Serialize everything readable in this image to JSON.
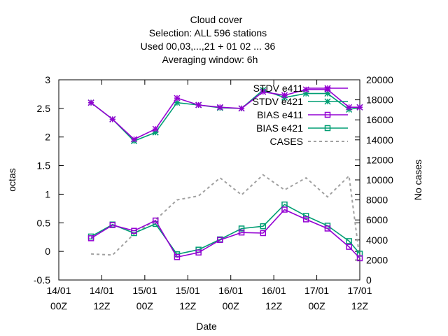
{
  "chart_data": {
    "type": "line",
    "title_lines": [
      "Cloud cover",
      "Selection: ALL    596 stations",
      "Used  00,03,...,21  + 01 02 ... 36",
      "Averaging window:  6h"
    ],
    "xlabel": "Date",
    "ylabel": "octas",
    "y2label": "No cases",
    "ylim": [
      -0.5,
      3
    ],
    "y2lim": [
      0,
      20000
    ],
    "xlim_hours": [
      0,
      84
    ],
    "y_ticks": [
      "-0.5",
      "0",
      "0.5",
      "1",
      "1.5",
      "2",
      "2.5",
      "3"
    ],
    "y2_ticks": [
      "0",
      "2000",
      "4000",
      "6000",
      "8000",
      "10000",
      "12000",
      "14000",
      "16000",
      "18000",
      "20000"
    ],
    "x_ticks": [
      {
        "line1": "14/01",
        "line2": "00Z"
      },
      {
        "line1": "14/01",
        "line2": "12Z"
      },
      {
        "line1": "15/01",
        "line2": "00Z"
      },
      {
        "line1": "15/01",
        "line2": "12Z"
      },
      {
        "line1": "16/01",
        "line2": "00Z"
      },
      {
        "line1": "16/01",
        "line2": "12Z"
      },
      {
        "line1": "17/01",
        "line2": "00Z"
      },
      {
        "line1": "17/01",
        "line2": "12Z"
      }
    ],
    "x_hours": [
      9,
      15,
      21,
      27,
      33,
      39,
      45,
      51,
      57,
      63,
      69,
      75,
      81,
      84
    ],
    "legend_position": "top-right",
    "series": [
      {
        "name": "STDV e411",
        "marker": "star",
        "color": "#9400d3",
        "axis": "y1",
        "values": [
          2.6,
          2.31,
          1.96,
          2.14,
          2.68,
          2.56,
          2.52,
          2.5,
          2.79,
          2.73,
          2.83,
          2.83,
          2.52,
          2.52
        ]
      },
      {
        "name": "STDV e421",
        "marker": "star",
        "color": "#009e73",
        "axis": "y1",
        "values": [
          2.6,
          2.31,
          1.93,
          2.08,
          2.6,
          2.56,
          2.51,
          2.5,
          2.82,
          2.69,
          2.76,
          2.76,
          2.48,
          2.52
        ]
      },
      {
        "name": "BIAS e411",
        "marker": "square",
        "color": "#9400d3",
        "axis": "y1",
        "values": [
          0.23,
          0.46,
          0.36,
          0.54,
          -0.1,
          -0.02,
          0.2,
          0.33,
          0.32,
          0.73,
          0.56,
          0.4,
          0.08,
          -0.12
        ]
      },
      {
        "name": "BIAS e421",
        "marker": "square",
        "color": "#009e73",
        "axis": "y1",
        "values": [
          0.26,
          0.47,
          0.32,
          0.48,
          -0.05,
          0.03,
          0.21,
          0.4,
          0.44,
          0.82,
          0.62,
          0.45,
          0.18,
          -0.04
        ]
      },
      {
        "name": "CASES",
        "marker": "none",
        "color": "#a0a0a0",
        "dashed": true,
        "axis": "y2",
        "values": [
          2600,
          2500,
          4600,
          6000,
          8000,
          8400,
          10200,
          8500,
          10500,
          9000,
          10200,
          8300,
          10400,
          2100
        ]
      }
    ]
  }
}
